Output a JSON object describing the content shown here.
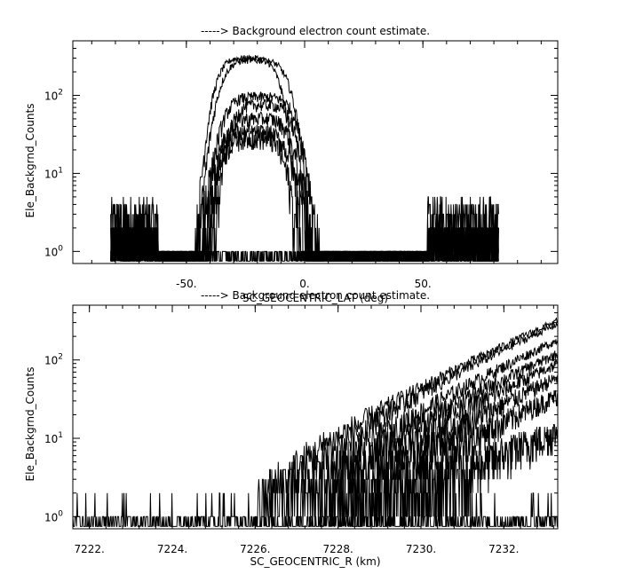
{
  "chart_data": [
    {
      "type": "line",
      "title": "-----> Background electron count estimate.",
      "xlabel": "SC_GEOCENTRIC_LAT (deg)",
      "ylabel": "Ele_Backgrnd_Counts",
      "xlim": [
        -98,
        107
      ],
      "ylim": [
        0.7,
        500
      ],
      "yscale": "log",
      "grid": false,
      "x_ticks": [
        {
          "value": -50,
          "label": "-50."
        },
        {
          "value": 0,
          "label": "0."
        },
        {
          "value": 50,
          "label": "50."
        }
      ],
      "y_ticks": [
        {
          "value": 1,
          "base": "10",
          "exp": "0"
        },
        {
          "value": 10,
          "base": "10",
          "exp": "1"
        },
        {
          "value": 100,
          "base": "10",
          "exp": "2"
        }
      ],
      "data_range": [
        -82,
        82
      ],
      "peaks": [
        {
          "x": -24,
          "y": 300
        },
        {
          "x": -21,
          "y": 280
        },
        {
          "x": -19,
          "y": 95
        },
        {
          "x": -18,
          "y": 75
        },
        {
          "x": -20,
          "y": 50
        },
        {
          "x": -22,
          "y": 33
        },
        {
          "x": -22,
          "y": 28
        }
      ],
      "background_level": 4
    },
    {
      "type": "line",
      "title": "-----> Background electron count estimate.",
      "xlabel": "SC_GEOCENTRIC_R (km)",
      "ylabel": "Ele_Backgrnd_Counts",
      "xlim": [
        7221.6,
        7233.3
      ],
      "ylim": [
        0.7,
        500
      ],
      "yscale": "log",
      "grid": false,
      "x_ticks": [
        {
          "value": 7222,
          "label": "7222."
        },
        {
          "value": 7224,
          "label": "7224."
        },
        {
          "value": 7226,
          "label": "7226."
        },
        {
          "value": 7228,
          "label": "7228."
        },
        {
          "value": 7230,
          "label": "7230."
        },
        {
          "value": 7232,
          "label": "7232."
        }
      ],
      "y_ticks": [
        {
          "value": 1,
          "base": "10",
          "exp": "0"
        },
        {
          "value": 10,
          "base": "10",
          "exp": "1"
        },
        {
          "value": 100,
          "base": "10",
          "exp": "2"
        }
      ],
      "curves": [
        {
          "x_start": 7226.0,
          "y_end": 320
        },
        {
          "x_start": 7226.3,
          "y_end": 290
        },
        {
          "x_start": 7227.0,
          "y_end": 180
        },
        {
          "x_start": 7227.3,
          "y_end": 120
        },
        {
          "x_start": 7227.8,
          "y_end": 90
        },
        {
          "x_start": 7228.3,
          "y_end": 60
        },
        {
          "x_start": 7228.8,
          "y_end": 35
        },
        {
          "x_start": 7229.5,
          "y_end": 12
        }
      ]
    }
  ]
}
